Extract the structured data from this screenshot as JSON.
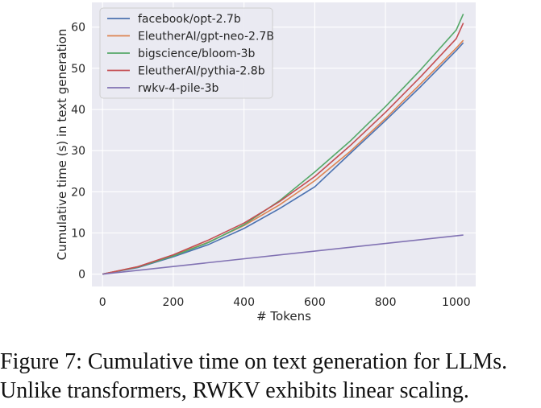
{
  "chart_data": {
    "type": "line",
    "xlabel": "# Tokens",
    "ylabel": "Cumulative time (s) in text generation",
    "xlim": [
      -30,
      1055
    ],
    "ylim": [
      -3,
      66
    ],
    "xticks": [
      0,
      200,
      400,
      600,
      800,
      1000
    ],
    "yticks": [
      0,
      10,
      20,
      30,
      40,
      50,
      60
    ],
    "grid": true,
    "legend_position": "top-left",
    "series": [
      {
        "name": "facebook/opt-2.7b",
        "color": "#4c72b0",
        "x": [
          0,
          100,
          200,
          300,
          400,
          500,
          600,
          700,
          800,
          900,
          1000,
          1020
        ],
        "y": [
          0,
          1.6,
          4.2,
          7.2,
          11.1,
          15.9,
          21.2,
          29.3,
          37.3,
          45.6,
          54.3,
          56.2
        ]
      },
      {
        "name": "EleutherAI/gpt-neo-2.7B",
        "color": "#dd8452",
        "x": [
          0,
          100,
          200,
          300,
          400,
          500,
          600,
          700,
          800,
          900,
          1000,
          1020
        ],
        "y": [
          0,
          1.8,
          4.5,
          7.8,
          11.8,
          16.8,
          22.7,
          29.8,
          37.8,
          46.3,
          54.9,
          56.8
        ]
      },
      {
        "name": "bigscience/bloom-3b",
        "color": "#55a868",
        "x": [
          0,
          100,
          200,
          300,
          400,
          500,
          600,
          700,
          800,
          900,
          1000,
          1020
        ],
        "y": [
          0,
          1.7,
          4.4,
          7.7,
          12.0,
          17.8,
          24.8,
          32.3,
          40.7,
          49.7,
          59.3,
          63.2
        ]
      },
      {
        "name": "EleutherAI/pythia-2.8b",
        "color": "#c44e52",
        "x": [
          0,
          100,
          200,
          300,
          400,
          500,
          600,
          700,
          800,
          900,
          1000,
          1020
        ],
        "y": [
          0,
          1.8,
          4.7,
          8.3,
          12.4,
          17.6,
          23.7,
          31.2,
          39.3,
          48.0,
          57.2,
          61.0
        ]
      },
      {
        "name": "rwkv-4-pile-3b",
        "color": "#8172b3",
        "x": [
          0,
          1020
        ],
        "y": [
          0,
          9.5
        ]
      }
    ]
  },
  "caption": {
    "line1": "Figure 7: Cumulative time on text generation for LLMs.",
    "line2": "Unlike transformers, RWKV exhibits linear scaling."
  }
}
